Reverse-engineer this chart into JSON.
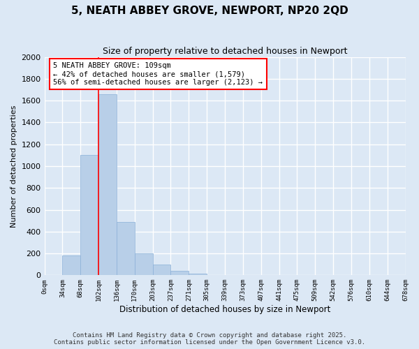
{
  "title": "5, NEATH ABBEY GROVE, NEWPORT, NP20 2QD",
  "subtitle": "Size of property relative to detached houses in Newport",
  "xlabel": "Distribution of detached houses by size in Newport",
  "ylabel": "Number of detached properties",
  "bar_color": "#b8cfe8",
  "bar_edge_color": "#8ab0d8",
  "background_color": "#dce8f5",
  "fig_background_color": "#dce8f5",
  "grid_color": "#ffffff",
  "bar_values": [
    0,
    180,
    1100,
    1660,
    490,
    200,
    100,
    40,
    15,
    0,
    0,
    0,
    0,
    0,
    0,
    0,
    0,
    0,
    0,
    0
  ],
  "bin_labels": [
    "0sqm",
    "34sqm",
    "68sqm",
    "102sqm",
    "136sqm",
    "170sqm",
    "203sqm",
    "237sqm",
    "271sqm",
    "305sqm",
    "339sqm",
    "373sqm",
    "407sqm",
    "441sqm",
    "475sqm",
    "509sqm",
    "542sqm",
    "576sqm",
    "610sqm",
    "644sqm",
    "678sqm"
  ],
  "ylim": [
    0,
    2000
  ],
  "yticks": [
    0,
    200,
    400,
    600,
    800,
    1000,
    1200,
    1400,
    1600,
    1800,
    2000
  ],
  "property_line_x": 3,
  "annotation_title": "5 NEATH ABBEY GROVE: 109sqm",
  "annotation_line1": "← 42% of detached houses are smaller (1,579)",
  "annotation_line2": "56% of semi-detached houses are larger (2,123) →",
  "footer1": "Contains HM Land Registry data © Crown copyright and database right 2025.",
  "footer2": "Contains public sector information licensed under the Open Government Licence v3.0.",
  "title_fontsize": 11,
  "subtitle_fontsize": 9,
  "annotation_fontsize": 7.5,
  "footer_fontsize": 6.5,
  "ylabel_fontsize": 8,
  "xlabel_fontsize": 8.5
}
